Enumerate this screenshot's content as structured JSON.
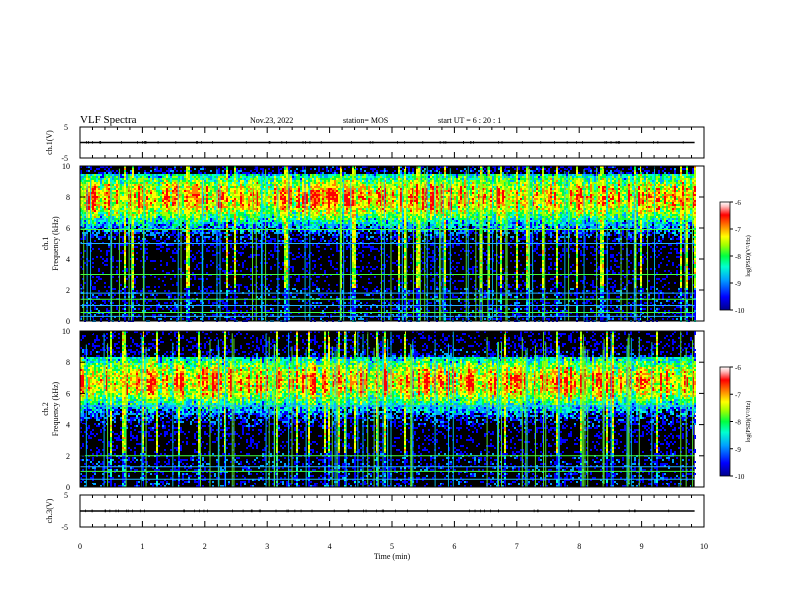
{
  "header": {
    "title": "VLF Spectra",
    "date": "Nov.23, 2022",
    "station": "station= MOS",
    "start_ut": "start  UT  =   6  : 20 : 1"
  },
  "colors": {
    "background": "#000000",
    "colormap": [
      "#00008b",
      "#0000ff",
      "#00a0ff",
      "#00ffd0",
      "#00ff40",
      "#a0ff00",
      "#ffff00",
      "#ff8000",
      "#ff0000",
      "#ffc0c0",
      "#ffffff"
    ]
  },
  "chart_data": [
    {
      "type": "line",
      "name": "ch1-waveform",
      "ylabel": "ch.1(V)",
      "ylim": [
        -5,
        5
      ],
      "yticks": [
        5,
        -5
      ],
      "xlim": [
        0,
        9.85
      ],
      "x": [
        0,
        9.85
      ],
      "y": [
        0,
        0
      ]
    },
    {
      "type": "heatmap",
      "name": "ch1-spectrogram",
      "ylabel": "ch.1\nFrequency (kHz)",
      "ylim": [
        0,
        10
      ],
      "yticks": [
        0,
        2,
        4,
        6,
        8,
        10
      ],
      "xlim": [
        0,
        10
      ],
      "data_end_min": 9.85,
      "band_center_khz": 8.0,
      "narrowband_lines_khz": [
        0.3,
        0.55,
        1.0,
        1.4,
        1.8,
        3.0,
        5.0,
        5.9
      ],
      "colorbar": {
        "label": "log(PSD)(V²/Hz)",
        "ticks": [
          -6,
          -7,
          -8,
          -9,
          -10
        ],
        "range": [
          -10,
          -6
        ]
      }
    },
    {
      "type": "heatmap",
      "name": "ch2-spectrogram",
      "ylabel": "ch.2\nFrequency (kHz)",
      "ylim": [
        0,
        10
      ],
      "yticks": [
        0,
        2,
        4,
        6,
        8,
        10
      ],
      "xlim": [
        0,
        10
      ],
      "data_end_min": 9.85,
      "band_center_khz": 6.8,
      "narrowband_lines_khz": [
        0.5,
        1.0,
        1.3,
        2.0,
        5.2
      ],
      "colorbar": {
        "label": "log(PSD)(V²/Hz)",
        "ticks": [
          -6,
          -7,
          -8,
          -9,
          -10
        ],
        "range": [
          -10,
          -6
        ]
      }
    },
    {
      "type": "line",
      "name": "ch3-waveform",
      "ylabel": "ch.3(V)",
      "ylim": [
        -5,
        5
      ],
      "yticks": [
        5,
        -5
      ],
      "xlim": [
        0,
        9.85
      ],
      "x": [
        0,
        9.85
      ],
      "y": [
        0,
        0
      ],
      "xlabel": "Time  (min)",
      "xticks": [
        0,
        1,
        2,
        3,
        4,
        5,
        6,
        7,
        8,
        9,
        10
      ]
    }
  ]
}
